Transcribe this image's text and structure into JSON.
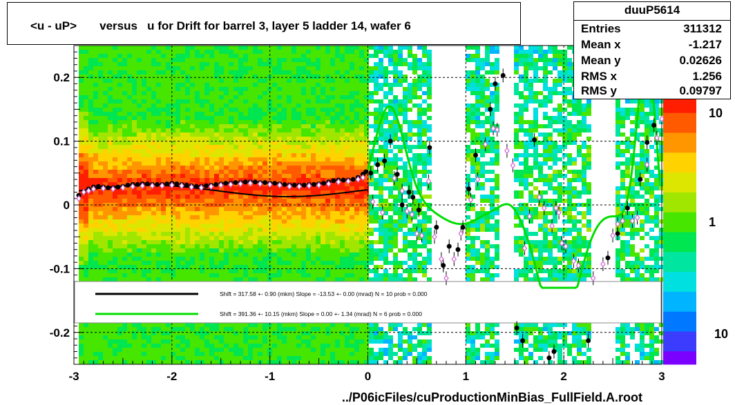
{
  "chart_data": {
    "type": "scatter",
    "title": "<u - uP>       versus   u for Drift for barrel 3, layer 5 ladder 14, wafer 6",
    "xlabel": "../P06icFiles/cuProductionMinBias_FullField.A.root",
    "ylabel": "",
    "xlim": [
      -3,
      3
    ],
    "ylim": [
      -0.25,
      0.25
    ],
    "x_ticks": [
      "-3",
      "-2",
      "-1",
      "0",
      "1",
      "2",
      "3"
    ],
    "y_ticks": [
      "-0.2",
      "-0.1",
      "0",
      "0.1",
      "0.2"
    ],
    "z_ticks": [
      "10",
      "1",
      "10"
    ],
    "z_scale": "log",
    "grid": true,
    "stats": {
      "name": "duuP5614",
      "rows": [
        {
          "key": "Entries",
          "value": "311312"
        },
        {
          "key": "Mean x",
          "value": "-1.217"
        },
        {
          "key": "Mean y",
          "value": "0.02626"
        },
        {
          "key": "RMS x",
          "value": "1.256"
        },
        {
          "key": "RMS y",
          "value": "0.09797"
        }
      ]
    },
    "fit_legend": [
      {
        "color": "#000000",
        "text": "Shift =   317.58 +- 0.90 (mkm) Slope =   -13.53 +- 0.00 (mrad)  N = 10 prob = 0.000"
      },
      {
        "color": "#00dd00",
        "text": "Shift =   391.36 +- 10.15 (mkm) Slope =     0.00 +- 1.34 (mrad)  N = 6 prob = 0.000"
      }
    ],
    "series": [
      {
        "marker": "filled-circle",
        "color": "#000000",
        "points": [
          [
            -2.95,
            0.015
          ],
          [
            -2.9,
            0.02
          ],
          [
            -2.85,
            0.025
          ],
          [
            -2.8,
            0.028
          ],
          [
            -2.75,
            0.029
          ],
          [
            -2.7,
            0.028
          ],
          [
            -2.65,
            0.027
          ],
          [
            -2.6,
            0.027
          ],
          [
            -2.55,
            0.028
          ],
          [
            -2.5,
            0.029
          ],
          [
            -2.45,
            0.031
          ],
          [
            -2.4,
            0.032
          ],
          [
            -2.35,
            0.032
          ],
          [
            -2.3,
            0.033
          ],
          [
            -2.25,
            0.033
          ],
          [
            -2.2,
            0.032
          ],
          [
            -2.15,
            0.032
          ],
          [
            -2.1,
            0.032
          ],
          [
            -2.05,
            0.033
          ],
          [
            -2.0,
            0.034
          ],
          [
            -1.95,
            0.033
          ],
          [
            -1.9,
            0.032
          ],
          [
            -1.85,
            0.031
          ],
          [
            -1.8,
            0.03
          ],
          [
            -1.75,
            0.029
          ],
          [
            -1.7,
            0.029
          ],
          [
            -1.65,
            0.03
          ],
          [
            -1.6,
            0.031
          ],
          [
            -1.55,
            0.032
          ],
          [
            -1.5,
            0.033
          ],
          [
            -1.45,
            0.034
          ],
          [
            -1.4,
            0.034
          ],
          [
            -1.35,
            0.035
          ],
          [
            -1.3,
            0.035
          ],
          [
            -1.25,
            0.036
          ],
          [
            -1.2,
            0.036
          ],
          [
            -1.15,
            0.036
          ],
          [
            -1.1,
            0.035
          ],
          [
            -1.05,
            0.035
          ],
          [
            -1.0,
            0.034
          ],
          [
            -0.95,
            0.034
          ],
          [
            -0.9,
            0.033
          ],
          [
            -0.85,
            0.032
          ],
          [
            -0.8,
            0.031
          ],
          [
            -0.75,
            0.031
          ],
          [
            -0.7,
            0.031
          ],
          [
            -0.65,
            0.031
          ],
          [
            -0.6,
            0.032
          ],
          [
            -0.55,
            0.032
          ],
          [
            -0.5,
            0.033
          ],
          [
            -0.45,
            0.034
          ],
          [
            -0.4,
            0.036
          ],
          [
            -0.35,
            0.038
          ],
          [
            -0.3,
            0.039
          ],
          [
            -0.25,
            0.039
          ],
          [
            -0.2,
            0.039
          ],
          [
            -0.15,
            0.04
          ],
          [
            -0.1,
            0.043
          ],
          [
            -0.05,
            0.048
          ],
          [
            -0.02,
            0.052
          ],
          [
            0.03,
            0.05
          ],
          [
            0.1,
            0.063
          ],
          [
            0.17,
            0.069
          ],
          [
            0.23,
            0.1
          ],
          [
            0.3,
            0.048
          ],
          [
            0.35,
            0.0
          ],
          [
            0.42,
            0.02
          ],
          [
            0.46,
            0.012
          ],
          [
            0.52,
            -0.008
          ],
          [
            0.63,
            0.09
          ],
          [
            0.7,
            -0.035
          ],
          [
            0.77,
            -0.095
          ],
          [
            0.83,
            -0.065
          ],
          [
            0.92,
            -0.07
          ],
          [
            0.97,
            -0.035
          ],
          [
            1.03,
            0.025
          ],
          [
            1.1,
            0.078
          ],
          [
            1.25,
            0.15
          ],
          [
            1.3,
            0.19
          ],
          [
            1.38,
            0.203
          ],
          [
            1.52,
            -0.193
          ],
          [
            1.58,
            -0.213
          ],
          [
            1.7,
            0.102
          ],
          [
            1.85,
            -0.24
          ],
          [
            1.9,
            -0.23
          ],
          [
            2.25,
            -0.213
          ],
          [
            2.45,
            -0.083
          ],
          [
            2.55,
            -0.045
          ],
          [
            2.65,
            -0.005
          ],
          [
            2.78,
            0.04
          ],
          [
            2.85,
            0.098
          ],
          [
            2.92,
            0.125
          ]
        ]
      },
      {
        "marker": "open-diamond",
        "color": "#cc66cc",
        "points": [
          [
            -2.95,
            0.01
          ],
          [
            -2.9,
            0.02
          ],
          [
            -2.85,
            0.022
          ],
          [
            -2.8,
            0.025
          ],
          [
            -2.7,
            0.026
          ],
          [
            -2.6,
            0.025
          ],
          [
            -2.5,
            0.027
          ],
          [
            -2.4,
            0.029
          ],
          [
            -2.3,
            0.03
          ],
          [
            -2.2,
            0.03
          ],
          [
            -2.1,
            0.03
          ],
          [
            -2.0,
            0.031
          ],
          [
            -1.9,
            0.03
          ],
          [
            -1.8,
            0.028
          ],
          [
            -1.7,
            0.027
          ],
          [
            -1.6,
            0.029
          ],
          [
            -1.5,
            0.031
          ],
          [
            -1.4,
            0.032
          ],
          [
            -1.3,
            0.033
          ],
          [
            -1.2,
            0.034
          ],
          [
            -1.1,
            0.033
          ],
          [
            -1.0,
            0.032
          ],
          [
            -0.9,
            0.031
          ],
          [
            -0.8,
            0.029
          ],
          [
            -0.7,
            0.029
          ],
          [
            -0.6,
            0.03
          ],
          [
            -0.5,
            0.031
          ],
          [
            -0.4,
            0.033
          ],
          [
            -0.3,
            0.036
          ],
          [
            -0.2,
            0.037
          ],
          [
            -0.1,
            0.04
          ],
          [
            -0.05,
            0.043
          ],
          [
            0.05,
            0.005
          ],
          [
            0.15,
            -0.012
          ],
          [
            0.27,
            0.042
          ],
          [
            0.35,
            0.022
          ],
          [
            0.4,
            -0.01
          ],
          [
            0.45,
            -0.015
          ],
          [
            0.5,
            -0.045
          ],
          [
            0.55,
            -0.048
          ],
          [
            0.62,
            0.037
          ],
          [
            0.68,
            -0.05
          ],
          [
            0.75,
            -0.085
          ],
          [
            0.8,
            -0.115
          ],
          [
            0.88,
            -0.085
          ],
          [
            0.95,
            -0.045
          ],
          [
            1.05,
            0.008
          ],
          [
            1.12,
            0.04
          ],
          [
            1.2,
            0.095
          ],
          [
            1.28,
            0.12
          ],
          [
            1.32,
            0.118
          ],
          [
            1.42,
            0.085
          ],
          [
            1.48,
            0.062
          ],
          [
            1.6,
            -0.068
          ],
          [
            1.65,
            -0.018
          ],
          [
            1.75,
            0.012
          ],
          [
            1.8,
            -0.005
          ],
          [
            1.88,
            -0.033
          ],
          [
            1.92,
            -0.005
          ],
          [
            1.95,
            -0.012
          ],
          [
            1.98,
            -0.06
          ],
          [
            2.02,
            -0.065
          ],
          [
            2.1,
            -0.088
          ],
          [
            2.15,
            -0.095
          ],
          [
            2.3,
            -0.115
          ],
          [
            2.4,
            -0.093
          ],
          [
            2.5,
            -0.048
          ],
          [
            2.55,
            -0.03
          ],
          [
            2.6,
            -0.025
          ],
          [
            2.7,
            -0.025
          ],
          [
            2.75,
            -0.02
          ],
          [
            2.85,
            0.063
          ],
          [
            2.95,
            0.105
          ],
          [
            3.0,
            0.135
          ]
        ]
      }
    ]
  }
}
